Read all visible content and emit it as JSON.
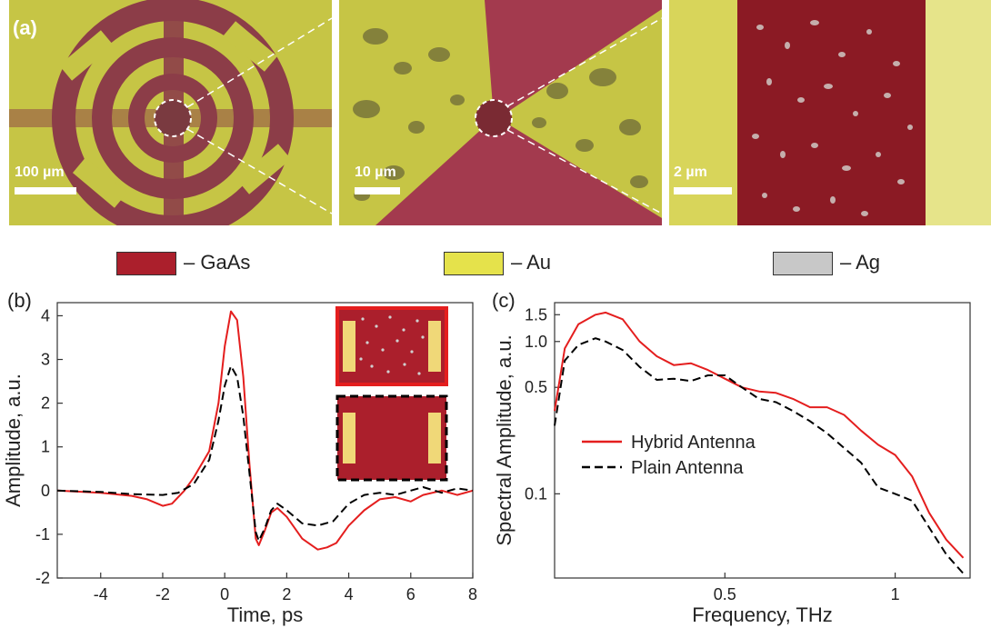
{
  "figure": {
    "panel_a_label": "(a)",
    "panel_b_label": "(b)",
    "panel_c_label": "(c)",
    "scale_bars": [
      "100 µm",
      "10 µm",
      "2 µm"
    ]
  },
  "colors": {
    "gaas": "#ab1f2c",
    "au": "#e5e24b",
    "ag": "#c8c8c8",
    "hybrid": "#e41e1e",
    "plain": "#000000",
    "photo_gaas": "#8c3d48",
    "photo_au": "#c6c545"
  },
  "legend": [
    {
      "swatch": "gaas",
      "label": "– GaAs"
    },
    {
      "swatch": "au",
      "label": "– Au"
    },
    {
      "swatch": "ag",
      "label": "– Ag"
    }
  ],
  "chart_data": [
    {
      "type": "line",
      "panel": "b",
      "xlabel": "Time, ps",
      "ylabel": "Amplitude, a.u.",
      "xlim": [
        -5.4,
        8
      ],
      "ylim": [
        -2,
        4.3
      ],
      "xticks": [
        -4,
        -2,
        0,
        2,
        4,
        6,
        8
      ],
      "xtick_labels": [
        "-4",
        "-2",
        "0",
        "2",
        "4",
        "6",
        "8"
      ],
      "yticks": [
        -2,
        -1,
        0,
        1,
        2,
        3,
        4
      ],
      "ytick_labels": [
        "-2",
        "-1",
        "0",
        "1",
        "2",
        "3",
        "4"
      ],
      "series": [
        {
          "color": "hybrid",
          "dash": "solid",
          "points": [
            [
              -5.4,
              0
            ],
            [
              -4,
              -0.05
            ],
            [
              -3,
              -0.12
            ],
            [
              -2.5,
              -0.2
            ],
            [
              -2,
              -0.35
            ],
            [
              -1.7,
              -0.3
            ],
            [
              -1.3,
              0
            ],
            [
              -1,
              0.3
            ],
            [
              -0.5,
              0.9
            ],
            [
              -0.2,
              2
            ],
            [
              0,
              3.3
            ],
            [
              0.2,
              4.1
            ],
            [
              0.4,
              3.9
            ],
            [
              0.6,
              2.6
            ],
            [
              0.8,
              0.6
            ],
            [
              1,
              -1.1
            ],
            [
              1.1,
              -1.25
            ],
            [
              1.3,
              -0.9
            ],
            [
              1.5,
              -0.5
            ],
            [
              1.7,
              -0.4
            ],
            [
              2,
              -0.6
            ],
            [
              2.5,
              -1.1
            ],
            [
              3,
              -1.35
            ],
            [
              3.3,
              -1.3
            ],
            [
              3.6,
              -1.2
            ],
            [
              4,
              -0.8
            ],
            [
              4.5,
              -0.45
            ],
            [
              5,
              -0.2
            ],
            [
              5.5,
              -0.15
            ],
            [
              6,
              -0.25
            ],
            [
              6.4,
              -0.1
            ],
            [
              7,
              0
            ],
            [
              7.5,
              -0.1
            ],
            [
              8,
              0
            ]
          ]
        },
        {
          "color": "plain",
          "dash": "dashed",
          "points": [
            [
              -5.4,
              0
            ],
            [
              -4,
              -0.03
            ],
            [
              -3,
              -0.08
            ],
            [
              -2,
              -0.1
            ],
            [
              -1.5,
              -0.05
            ],
            [
              -1,
              0.15
            ],
            [
              -0.5,
              0.7
            ],
            [
              -0.2,
              1.6
            ],
            [
              0,
              2.4
            ],
            [
              0.2,
              2.85
            ],
            [
              0.4,
              2.6
            ],
            [
              0.6,
              1.7
            ],
            [
              0.8,
              0.4
            ],
            [
              1,
              -0.95
            ],
            [
              1.1,
              -1.15
            ],
            [
              1.3,
              -0.85
            ],
            [
              1.5,
              -0.45
            ],
            [
              1.7,
              -0.3
            ],
            [
              2,
              -0.45
            ],
            [
              2.5,
              -0.75
            ],
            [
              3,
              -0.8
            ],
            [
              3.5,
              -0.7
            ],
            [
              4,
              -0.3
            ],
            [
              4.5,
              -0.1
            ],
            [
              5,
              -0.05
            ],
            [
              5.5,
              -0.1
            ],
            [
              6,
              0
            ],
            [
              6.4,
              0.08
            ],
            [
              7,
              -0.05
            ],
            [
              7.5,
              0.05
            ],
            [
              8,
              0
            ]
          ]
        }
      ]
    },
    {
      "type": "line",
      "panel": "c",
      "xlabel": "Frequency, THz",
      "ylabel": "Spectral Amplitude, a.u.",
      "yscale": "log",
      "xlim": [
        0.0,
        1.22
      ],
      "ylim": [
        0.028,
        1.8
      ],
      "xticks": [
        0.5,
        1
      ],
      "xtick_labels": [
        "0.5",
        "1"
      ],
      "yticks": [
        0.1,
        0.5,
        1.0,
        1.5
      ],
      "ytick_labels": [
        "0.1",
        "0.5",
        "1.0",
        "1.5"
      ],
      "legend_position": "center-left",
      "series": [
        {
          "name": "Hybrid Antenna",
          "color": "hybrid",
          "dash": "solid",
          "points": [
            [
              0,
              0.35
            ],
            [
              0.03,
              0.9
            ],
            [
              0.07,
              1.3
            ],
            [
              0.12,
              1.5
            ],
            [
              0.15,
              1.55
            ],
            [
              0.2,
              1.4
            ],
            [
              0.25,
              1.0
            ],
            [
              0.3,
              0.8
            ],
            [
              0.35,
              0.7
            ],
            [
              0.4,
              0.72
            ],
            [
              0.45,
              0.65
            ],
            [
              0.5,
              0.57
            ],
            [
              0.55,
              0.5
            ],
            [
              0.6,
              0.47
            ],
            [
              0.65,
              0.46
            ],
            [
              0.7,
              0.42
            ],
            [
              0.75,
              0.37
            ],
            [
              0.8,
              0.37
            ],
            [
              0.85,
              0.33
            ],
            [
              0.9,
              0.26
            ],
            [
              0.95,
              0.21
            ],
            [
              1.0,
              0.18
            ],
            [
              1.05,
              0.13
            ],
            [
              1.1,
              0.075
            ],
            [
              1.15,
              0.05
            ],
            [
              1.2,
              0.038
            ]
          ]
        },
        {
          "name": "Plain Antenna",
          "color": "plain",
          "dash": "dashed",
          "points": [
            [
              0,
              0.28
            ],
            [
              0.03,
              0.75
            ],
            [
              0.07,
              0.95
            ],
            [
              0.12,
              1.05
            ],
            [
              0.15,
              1.0
            ],
            [
              0.2,
              0.88
            ],
            [
              0.25,
              0.68
            ],
            [
              0.3,
              0.56
            ],
            [
              0.35,
              0.57
            ],
            [
              0.4,
              0.55
            ],
            [
              0.45,
              0.6
            ],
            [
              0.5,
              0.6
            ],
            [
              0.55,
              0.5
            ],
            [
              0.6,
              0.42
            ],
            [
              0.65,
              0.4
            ],
            [
              0.7,
              0.35
            ],
            [
              0.75,
              0.3
            ],
            [
              0.8,
              0.25
            ],
            [
              0.85,
              0.2
            ],
            [
              0.9,
              0.16
            ],
            [
              0.95,
              0.11
            ],
            [
              1.0,
              0.1
            ],
            [
              1.05,
              0.09
            ],
            [
              1.1,
              0.06
            ],
            [
              1.15,
              0.04
            ],
            [
              1.2,
              0.03
            ]
          ]
        }
      ]
    }
  ]
}
